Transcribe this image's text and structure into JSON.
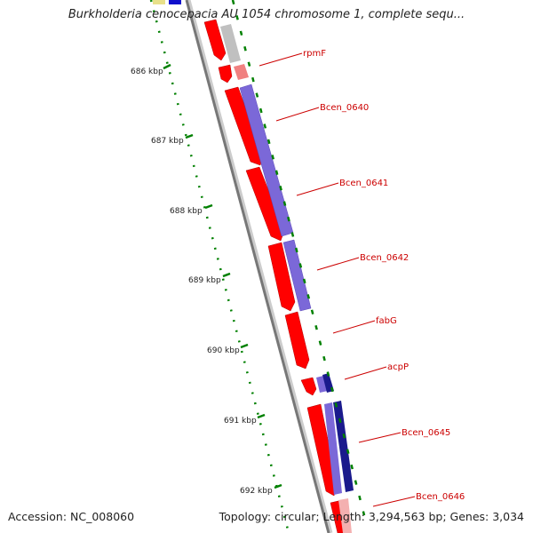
{
  "title": "Burkholderia cenocepacia AU 1054 chromosome 1, complete sequ...",
  "footer": {
    "accession": "Accession: NC_008060",
    "summary": "Topology: circular; Length: 3,294,563 bp; Genes: 3,034"
  },
  "kbp_ticks": [
    "686 kbp",
    "687 kbp",
    "688 kbp",
    "689 kbp",
    "690 kbp",
    "691 kbp",
    "692 kbp"
  ],
  "genes": [
    "rpmF",
    "Bcen_0640",
    "Bcen_0641",
    "Bcen_0642",
    "fabG",
    "acpP",
    "Bcen_0645",
    "Bcen_0646"
  ],
  "colors": {
    "forward_gene": "#ff0000",
    "blast_hit": "#7b68d8",
    "dark_hit": "#1a1a8c",
    "backbone": "#888888",
    "tick": "#008000",
    "label": "#cc0000"
  }
}
